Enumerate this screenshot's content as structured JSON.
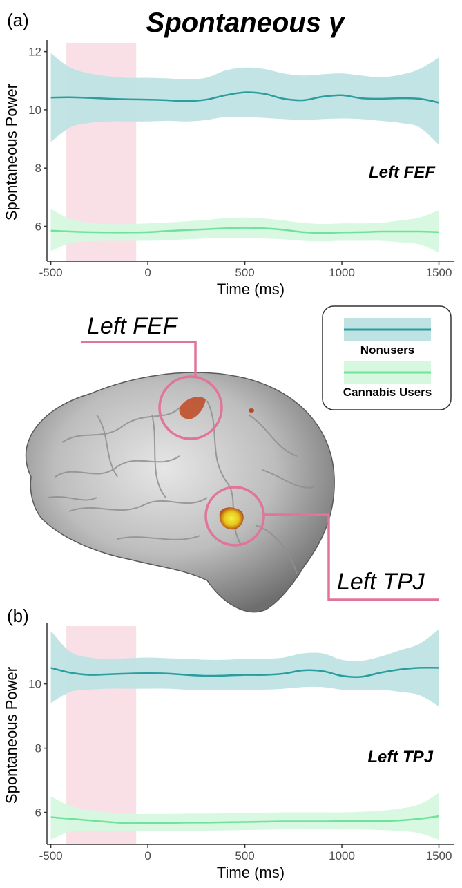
{
  "title": "Spontaneous γ",
  "brain": {
    "label_fef": "Left FEF",
    "label_tpj": "Left TPJ"
  },
  "legend": {
    "items": [
      {
        "name": "Nonusers",
        "line_color": "#2a9d9f",
        "band_color": "#bfe3e3"
      },
      {
        "name": "Cannabis Users",
        "line_color": "#6fe39a",
        "band_color": "#d6f8df"
      }
    ]
  },
  "colors": {
    "highlight": "#f9e0e6",
    "connector": "#e07596",
    "axis": "#333333"
  },
  "chart_data": [
    {
      "type": "line",
      "panel_label": "(a)",
      "region": "Left FEF",
      "xlabel": "Time (ms)",
      "ylabel": "Spontaneous Power",
      "xlim": [
        -520,
        1580
      ],
      "ylim": [
        4.8,
        12.3
      ],
      "xticks": [
        -500,
        0,
        500,
        1000,
        1500
      ],
      "xtick_labels": [
        "-500",
        "0",
        "500",
        "1000",
        "1500"
      ],
      "yticks": [
        6,
        8,
        10,
        12
      ],
      "ytick_labels": [
        "6",
        "8",
        "10",
        "12"
      ],
      "highlight_x": [
        -420,
        -60
      ],
      "series": [
        {
          "name": "Nonusers",
          "x": [
            -500,
            -400,
            -300,
            -200,
            -100,
            0,
            100,
            200,
            300,
            400,
            500,
            600,
            700,
            800,
            900,
            1000,
            1100,
            1200,
            1300,
            1400,
            1500
          ],
          "mean": [
            10.42,
            10.43,
            10.41,
            10.38,
            10.36,
            10.35,
            10.33,
            10.3,
            10.35,
            10.5,
            10.6,
            10.55,
            10.38,
            10.33,
            10.45,
            10.5,
            10.4,
            10.38,
            10.4,
            10.38,
            10.25
          ],
          "lower": [
            8.9,
            9.4,
            9.55,
            9.6,
            9.6,
            9.6,
            9.62,
            9.6,
            9.65,
            9.75,
            9.75,
            9.72,
            9.68,
            9.65,
            9.68,
            9.7,
            9.68,
            9.62,
            9.55,
            9.4,
            8.8
          ],
          "upper": [
            11.95,
            11.45,
            11.25,
            11.15,
            11.1,
            11.1,
            11.08,
            11.05,
            11.1,
            11.35,
            11.45,
            11.4,
            11.25,
            11.18,
            11.22,
            11.25,
            11.18,
            11.12,
            11.2,
            11.4,
            11.8
          ]
        },
        {
          "name": "Cannabis Users",
          "x": [
            -500,
            -400,
            -300,
            -200,
            -100,
            0,
            100,
            200,
            300,
            400,
            500,
            600,
            700,
            800,
            900,
            1000,
            1100,
            1200,
            1300,
            1400,
            1500
          ],
          "mean": [
            5.85,
            5.82,
            5.8,
            5.79,
            5.79,
            5.8,
            5.84,
            5.87,
            5.9,
            5.93,
            5.95,
            5.93,
            5.88,
            5.8,
            5.77,
            5.79,
            5.8,
            5.82,
            5.82,
            5.82,
            5.8
          ],
          "lower": [
            5.15,
            5.42,
            5.48,
            5.5,
            5.5,
            5.5,
            5.52,
            5.55,
            5.58,
            5.6,
            5.6,
            5.58,
            5.55,
            5.5,
            5.48,
            5.5,
            5.5,
            5.5,
            5.45,
            5.38,
            5.1
          ],
          "upper": [
            6.6,
            6.25,
            6.12,
            6.08,
            6.08,
            6.1,
            6.13,
            6.17,
            6.22,
            6.28,
            6.3,
            6.27,
            6.2,
            6.12,
            6.08,
            6.1,
            6.1,
            6.12,
            6.2,
            6.3,
            6.55
          ]
        }
      ]
    },
    {
      "type": "line",
      "panel_label": "(b)",
      "region": "Left TPJ",
      "xlabel": "Time (ms)",
      "ylabel": "Spontaneous Power",
      "xlim": [
        -520,
        1580
      ],
      "ylim": [
        5.0,
        11.8
      ],
      "xticks": [
        -500,
        0,
        500,
        1000,
        1500
      ],
      "xtick_labels": [
        "-500",
        "0",
        "500",
        "1000",
        "1500"
      ],
      "yticks": [
        6,
        8,
        10
      ],
      "ytick_labels": [
        "6",
        "8",
        "10"
      ],
      "highlight_x": [
        -420,
        -60
      ],
      "series": [
        {
          "name": "Nonusers",
          "x": [
            -500,
            -400,
            -300,
            -200,
            -100,
            0,
            100,
            200,
            300,
            400,
            500,
            600,
            700,
            800,
            900,
            1000,
            1100,
            1200,
            1300,
            1400,
            1500
          ],
          "mean": [
            10.5,
            10.35,
            10.28,
            10.3,
            10.32,
            10.33,
            10.32,
            10.28,
            10.25,
            10.26,
            10.28,
            10.28,
            10.32,
            10.42,
            10.4,
            10.25,
            10.22,
            10.35,
            10.45,
            10.5,
            10.5
          ],
          "lower": [
            9.4,
            9.75,
            9.82,
            9.85,
            9.85,
            9.85,
            9.85,
            9.82,
            9.8,
            9.8,
            9.82,
            9.82,
            9.85,
            9.9,
            9.9,
            9.82,
            9.8,
            9.82,
            9.75,
            9.65,
            9.3
          ],
          "upper": [
            11.65,
            11.0,
            10.82,
            10.78,
            10.8,
            10.82,
            10.8,
            10.78,
            10.75,
            10.75,
            10.78,
            10.78,
            10.82,
            10.95,
            10.95,
            10.75,
            10.72,
            10.85,
            11.05,
            11.25,
            11.7
          ]
        },
        {
          "name": "Cannabis Users",
          "x": [
            -500,
            -400,
            -300,
            -200,
            -100,
            0,
            100,
            200,
            300,
            400,
            500,
            600,
            700,
            800,
            900,
            1000,
            1100,
            1200,
            1300,
            1400,
            1500
          ],
          "mean": [
            5.85,
            5.8,
            5.75,
            5.7,
            5.66,
            5.67,
            5.67,
            5.68,
            5.68,
            5.69,
            5.7,
            5.71,
            5.72,
            5.72,
            5.72,
            5.73,
            5.73,
            5.73,
            5.75,
            5.8,
            5.88
          ],
          "lower": [
            5.15,
            5.4,
            5.42,
            5.42,
            5.4,
            5.42,
            5.42,
            5.43,
            5.43,
            5.44,
            5.45,
            5.46,
            5.47,
            5.47,
            5.47,
            5.47,
            5.47,
            5.45,
            5.42,
            5.35,
            5.15
          ],
          "upper": [
            6.5,
            6.2,
            6.08,
            6.0,
            5.95,
            5.95,
            5.95,
            5.96,
            5.96,
            5.97,
            5.98,
            5.99,
            6.0,
            6.0,
            6.0,
            6.0,
            6.02,
            6.05,
            6.12,
            6.25,
            6.6
          ]
        }
      ]
    }
  ]
}
